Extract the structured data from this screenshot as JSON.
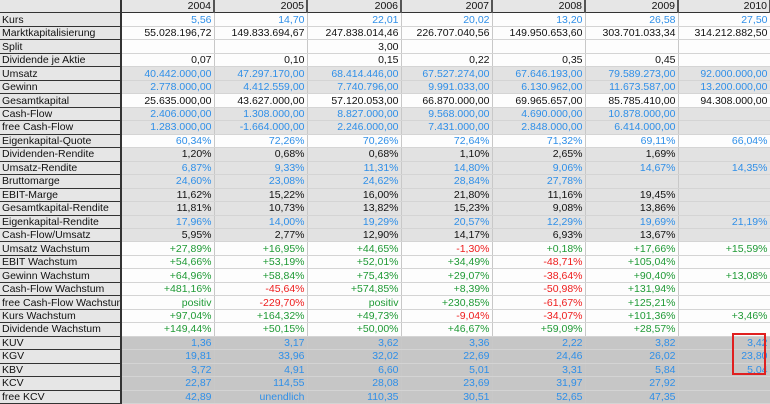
{
  "header": {
    "years": [
      "2004",
      "2005",
      "2006",
      "2007",
      "2008",
      "2009",
      "2010"
    ]
  },
  "colors": {
    "b": "#2f8fe8",
    "k": "#111111",
    "g": "#1f9a35",
    "r": "#ee1c1c",
    "highlight": "#e02020"
  },
  "rows": [
    {
      "label": "Kurs",
      "shade": "w",
      "cells": [
        [
          "5,56",
          "b"
        ],
        [
          "14,70",
          "b"
        ],
        [
          "22,01",
          "b"
        ],
        [
          "20,02",
          "b"
        ],
        [
          "13,20",
          "b"
        ],
        [
          "26,58",
          "b"
        ],
        [
          "27,50",
          "b"
        ]
      ]
    },
    {
      "label": "Marktkapitalisierung",
      "shade": "w",
      "cells": [
        [
          "55.028.196,72",
          "k"
        ],
        [
          "149.833.694,67",
          "k"
        ],
        [
          "247.838.014,46",
          "k"
        ],
        [
          "226.707.040,56",
          "k"
        ],
        [
          "149.950.653,60",
          "k"
        ],
        [
          "303.701.033,34",
          "k"
        ],
        [
          "314.212.882,50",
          "k"
        ]
      ]
    },
    {
      "label": "Split",
      "shade": "w",
      "cells": [
        [
          "",
          "k"
        ],
        [
          "",
          "k"
        ],
        [
          "3,00",
          "k"
        ],
        [
          "",
          "k"
        ],
        [
          "",
          "k"
        ],
        [
          "",
          "k"
        ],
        [
          "",
          "k"
        ]
      ]
    },
    {
      "label": "Dividende je Aktie",
      "shade": "w",
      "cells": [
        [
          "0,07",
          "k"
        ],
        [
          "0,10",
          "k"
        ],
        [
          "0,15",
          "k"
        ],
        [
          "0,22",
          "k"
        ],
        [
          "0,35",
          "k"
        ],
        [
          "0,45",
          "k"
        ],
        [
          "",
          "k"
        ]
      ]
    },
    {
      "label": "Umsatz",
      "shade": "s",
      "cells": [
        [
          "40.442.000,00",
          "b"
        ],
        [
          "47.297.170,00",
          "b"
        ],
        [
          "68.414.446,00",
          "b"
        ],
        [
          "67.527.274,00",
          "b"
        ],
        [
          "67.646.193,00",
          "b"
        ],
        [
          "79.589.273,00",
          "b"
        ],
        [
          "92.000.000,00",
          "b"
        ]
      ]
    },
    {
      "label": "Gewinn",
      "shade": "s",
      "cells": [
        [
          "2.778.000,00",
          "b"
        ],
        [
          "4.412.559,00",
          "b"
        ],
        [
          "7.740.796,00",
          "b"
        ],
        [
          "9.991.033,00",
          "b"
        ],
        [
          "6.130.962,00",
          "b"
        ],
        [
          "11.673.587,00",
          "b"
        ],
        [
          "13.200.000,00",
          "b"
        ]
      ]
    },
    {
      "label": "Gesamtkapital",
      "shade": "w",
      "cells": [
        [
          "25.635.000,00",
          "k"
        ],
        [
          "43.627.000,00",
          "k"
        ],
        [
          "57.120.053,00",
          "k"
        ],
        [
          "66.870.000,00",
          "k"
        ],
        [
          "69.965.657,00",
          "k"
        ],
        [
          "85.785.410,00",
          "k"
        ],
        [
          "94.308.000,00",
          "k"
        ]
      ]
    },
    {
      "label": "Cash-Flow",
      "shade": "s",
      "cells": [
        [
          "2.406.000,00",
          "b"
        ],
        [
          "1.308.000,00",
          "b"
        ],
        [
          "8.827.000,00",
          "b"
        ],
        [
          "9.568.000,00",
          "b"
        ],
        [
          "4.690.000,00",
          "b"
        ],
        [
          "10.878.000,00",
          "b"
        ],
        [
          "",
          "b"
        ]
      ]
    },
    {
      "label": "free Cash-Flow",
      "shade": "s",
      "cells": [
        [
          "1.283.000,00",
          "b"
        ],
        [
          "-1.664.000,00",
          "b"
        ],
        [
          "2.246.000,00",
          "b"
        ],
        [
          "7.431.000,00",
          "b"
        ],
        [
          "2.848.000,00",
          "b"
        ],
        [
          "6.414.000,00",
          "b"
        ],
        [
          "",
          "b"
        ]
      ]
    },
    {
      "label": "Eigenkapital-Quote",
      "shade": "w",
      "cells": [
        [
          "60,34%",
          "b"
        ],
        [
          "72,26%",
          "b"
        ],
        [
          "70,26%",
          "b"
        ],
        [
          "72,64%",
          "b"
        ],
        [
          "71,32%",
          "b"
        ],
        [
          "69,11%",
          "b"
        ],
        [
          "66,04%",
          "b"
        ]
      ]
    },
    {
      "label": "Dividenden-Rendite",
      "shade": "s",
      "cells": [
        [
          "1,20%",
          "k"
        ],
        [
          "0,68%",
          "k"
        ],
        [
          "0,68%",
          "k"
        ],
        [
          "1,10%",
          "k"
        ],
        [
          "2,65%",
          "k"
        ],
        [
          "1,69%",
          "k"
        ],
        [
          "",
          "k"
        ]
      ]
    },
    {
      "label": "Umsatz-Rendite",
      "shade": "s",
      "cells": [
        [
          "6,87%",
          "b"
        ],
        [
          "9,33%",
          "b"
        ],
        [
          "11,31%",
          "b"
        ],
        [
          "14,80%",
          "b"
        ],
        [
          "9,06%",
          "b"
        ],
        [
          "14,67%",
          "b"
        ],
        [
          "14,35%",
          "b"
        ]
      ]
    },
    {
      "label": "Bruttomarge",
      "shade": "s",
      "cells": [
        [
          "24,60%",
          "b"
        ],
        [
          "23,08%",
          "b"
        ],
        [
          "24,62%",
          "b"
        ],
        [
          "28,84%",
          "b"
        ],
        [
          "27,78%",
          "b"
        ],
        [
          "",
          "b"
        ],
        [
          "",
          "b"
        ]
      ]
    },
    {
      "label": "EBIT-Marge",
      "shade": "s",
      "cells": [
        [
          "11,62%",
          "k"
        ],
        [
          "15,22%",
          "k"
        ],
        [
          "16,00%",
          "k"
        ],
        [
          "21,80%",
          "k"
        ],
        [
          "11,16%",
          "k"
        ],
        [
          "19,45%",
          "k"
        ],
        [
          "",
          "k"
        ]
      ]
    },
    {
      "label": "Gesamtkapital-Rendite",
      "shade": "s",
      "cells": [
        [
          "11,81%",
          "k"
        ],
        [
          "10,73%",
          "k"
        ],
        [
          "13,82%",
          "k"
        ],
        [
          "15,23%",
          "k"
        ],
        [
          "9,08%",
          "k"
        ],
        [
          "13,86%",
          "k"
        ],
        [
          "",
          "k"
        ]
      ]
    },
    {
      "label": "Eigenkapital-Rendite",
      "shade": "s",
      "cells": [
        [
          "17,96%",
          "b"
        ],
        [
          "14,00%",
          "b"
        ],
        [
          "19,29%",
          "b"
        ],
        [
          "20,57%",
          "b"
        ],
        [
          "12,29%",
          "b"
        ],
        [
          "19,69%",
          "b"
        ],
        [
          "21,19%",
          "b"
        ]
      ]
    },
    {
      "label": "Cash-Flow/Umsatz",
      "shade": "s",
      "cells": [
        [
          "5,95%",
          "k"
        ],
        [
          "2,77%",
          "k"
        ],
        [
          "12,90%",
          "k"
        ],
        [
          "14,17%",
          "k"
        ],
        [
          "6,93%",
          "k"
        ],
        [
          "13,67%",
          "k"
        ],
        [
          "",
          "k"
        ]
      ]
    },
    {
      "label": "Umsatz Wachstum",
      "shade": "w",
      "cells": [
        [
          "+27,89%",
          "g"
        ],
        [
          "+16,95%",
          "g"
        ],
        [
          "+44,65%",
          "g"
        ],
        [
          "-1,30%",
          "r"
        ],
        [
          "+0,18%",
          "g"
        ],
        [
          "+17,66%",
          "g"
        ],
        [
          "+15,59%",
          "g"
        ]
      ]
    },
    {
      "label": "EBIT Wachstum",
      "shade": "w",
      "cells": [
        [
          "+54,66%",
          "g"
        ],
        [
          "+53,19%",
          "g"
        ],
        [
          "+52,01%",
          "g"
        ],
        [
          "+34,49%",
          "g"
        ],
        [
          "-48,71%",
          "r"
        ],
        [
          "+105,04%",
          "g"
        ],
        [
          "",
          "g"
        ]
      ]
    },
    {
      "label": "Gewinn Wachstum",
      "shade": "w",
      "cells": [
        [
          "+64,96%",
          "g"
        ],
        [
          "+58,84%",
          "g"
        ],
        [
          "+75,43%",
          "g"
        ],
        [
          "+29,07%",
          "g"
        ],
        [
          "-38,64%",
          "r"
        ],
        [
          "+90,40%",
          "g"
        ],
        [
          "+13,08%",
          "g"
        ]
      ]
    },
    {
      "label": "Cash-Flow Wachstum",
      "shade": "w",
      "cells": [
        [
          "+481,16%",
          "g"
        ],
        [
          "-45,64%",
          "r"
        ],
        [
          "+574,85%",
          "g"
        ],
        [
          "+8,39%",
          "g"
        ],
        [
          "-50,98%",
          "r"
        ],
        [
          "+131,94%",
          "g"
        ],
        [
          "",
          "g"
        ]
      ]
    },
    {
      "label": "free Cash-Flow Wachstum",
      "shade": "w",
      "cells": [
        [
          "positiv",
          "g"
        ],
        [
          "-229,70%",
          "r"
        ],
        [
          "positiv",
          "g"
        ],
        [
          "+230,85%",
          "g"
        ],
        [
          "-61,67%",
          "r"
        ],
        [
          "+125,21%",
          "g"
        ],
        [
          "",
          "g"
        ]
      ]
    },
    {
      "label": "Kurs Wachstum",
      "shade": "w",
      "cells": [
        [
          "+97,04%",
          "g"
        ],
        [
          "+164,32%",
          "g"
        ],
        [
          "+49,73%",
          "g"
        ],
        [
          "-9,04%",
          "r"
        ],
        [
          "-34,07%",
          "r"
        ],
        [
          "+101,36%",
          "g"
        ],
        [
          "+3,46%",
          "g"
        ]
      ]
    },
    {
      "label": "Dividende Wachstum",
      "shade": "w",
      "cells": [
        [
          "+149,44%",
          "g"
        ],
        [
          "+50,15%",
          "g"
        ],
        [
          "+50,00%",
          "g"
        ],
        [
          "+46,67%",
          "g"
        ],
        [
          "+59,09%",
          "g"
        ],
        [
          "+28,57%",
          "g"
        ],
        [
          "",
          "g"
        ]
      ]
    },
    {
      "label": "KUV",
      "shade": "d",
      "cells": [
        [
          "1,36",
          "b"
        ],
        [
          "3,17",
          "b"
        ],
        [
          "3,62",
          "b"
        ],
        [
          "3,36",
          "b"
        ],
        [
          "2,22",
          "b"
        ],
        [
          "3,82",
          "b"
        ],
        [
          "3,42",
          "b"
        ]
      ]
    },
    {
      "label": "KGV",
      "shade": "d",
      "cells": [
        [
          "19,81",
          "b"
        ],
        [
          "33,96",
          "b"
        ],
        [
          "32,02",
          "b"
        ],
        [
          "22,69",
          "b"
        ],
        [
          "24,46",
          "b"
        ],
        [
          "26,02",
          "b"
        ],
        [
          "23,80",
          "b"
        ]
      ]
    },
    {
      "label": "KBV",
      "shade": "d",
      "cells": [
        [
          "3,72",
          "b"
        ],
        [
          "4,91",
          "b"
        ],
        [
          "6,60",
          "b"
        ],
        [
          "5,01",
          "b"
        ],
        [
          "3,31",
          "b"
        ],
        [
          "5,84",
          "b"
        ],
        [
          "5,04",
          "b"
        ]
      ]
    },
    {
      "label": "KCV",
      "shade": "d",
      "cells": [
        [
          "22,87",
          "b"
        ],
        [
          "114,55",
          "b"
        ],
        [
          "28,08",
          "b"
        ],
        [
          "23,69",
          "b"
        ],
        [
          "31,97",
          "b"
        ],
        [
          "27,92",
          "b"
        ],
        [
          "",
          "b"
        ]
      ]
    },
    {
      "label": "free KCV",
      "shade": "d",
      "cells": [
        [
          "42,89",
          "b"
        ],
        [
          "unendlich",
          "b"
        ],
        [
          "110,35",
          "b"
        ],
        [
          "30,51",
          "b"
        ],
        [
          "52,65",
          "b"
        ],
        [
          "47,35",
          "b"
        ],
        [
          "",
          "b"
        ]
      ]
    }
  ]
}
